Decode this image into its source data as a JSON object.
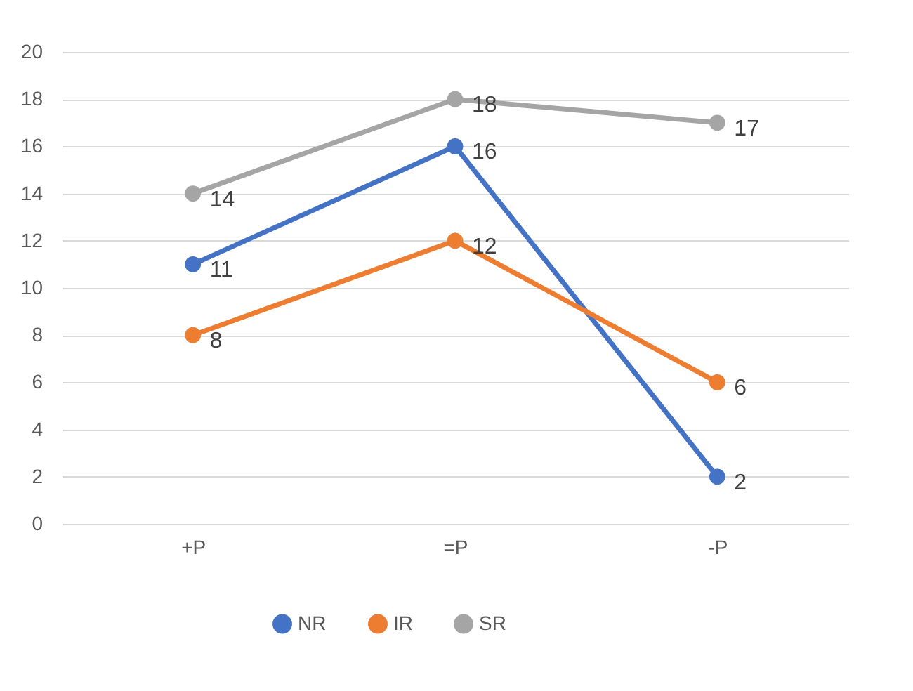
{
  "chart_data": {
    "type": "line",
    "categories": [
      "+P",
      "=P",
      "-P"
    ],
    "series": [
      {
        "name": "NR",
        "color": "#4472c4",
        "values": [
          11,
          16,
          2
        ]
      },
      {
        "name": "IR",
        "color": "#ed7d31",
        "values": [
          8,
          12,
          6
        ]
      },
      {
        "name": "SR",
        "color": "#a5a5a5",
        "values": [
          14,
          18,
          17
        ]
      }
    ],
    "ylim": [
      0,
      20
    ],
    "yticks": [
      0,
      2,
      4,
      6,
      8,
      10,
      12,
      14,
      16,
      18,
      20
    ],
    "grid": "y",
    "legend": "bottom",
    "marker": "circle",
    "line_style": "solid",
    "data_labels": true
  }
}
